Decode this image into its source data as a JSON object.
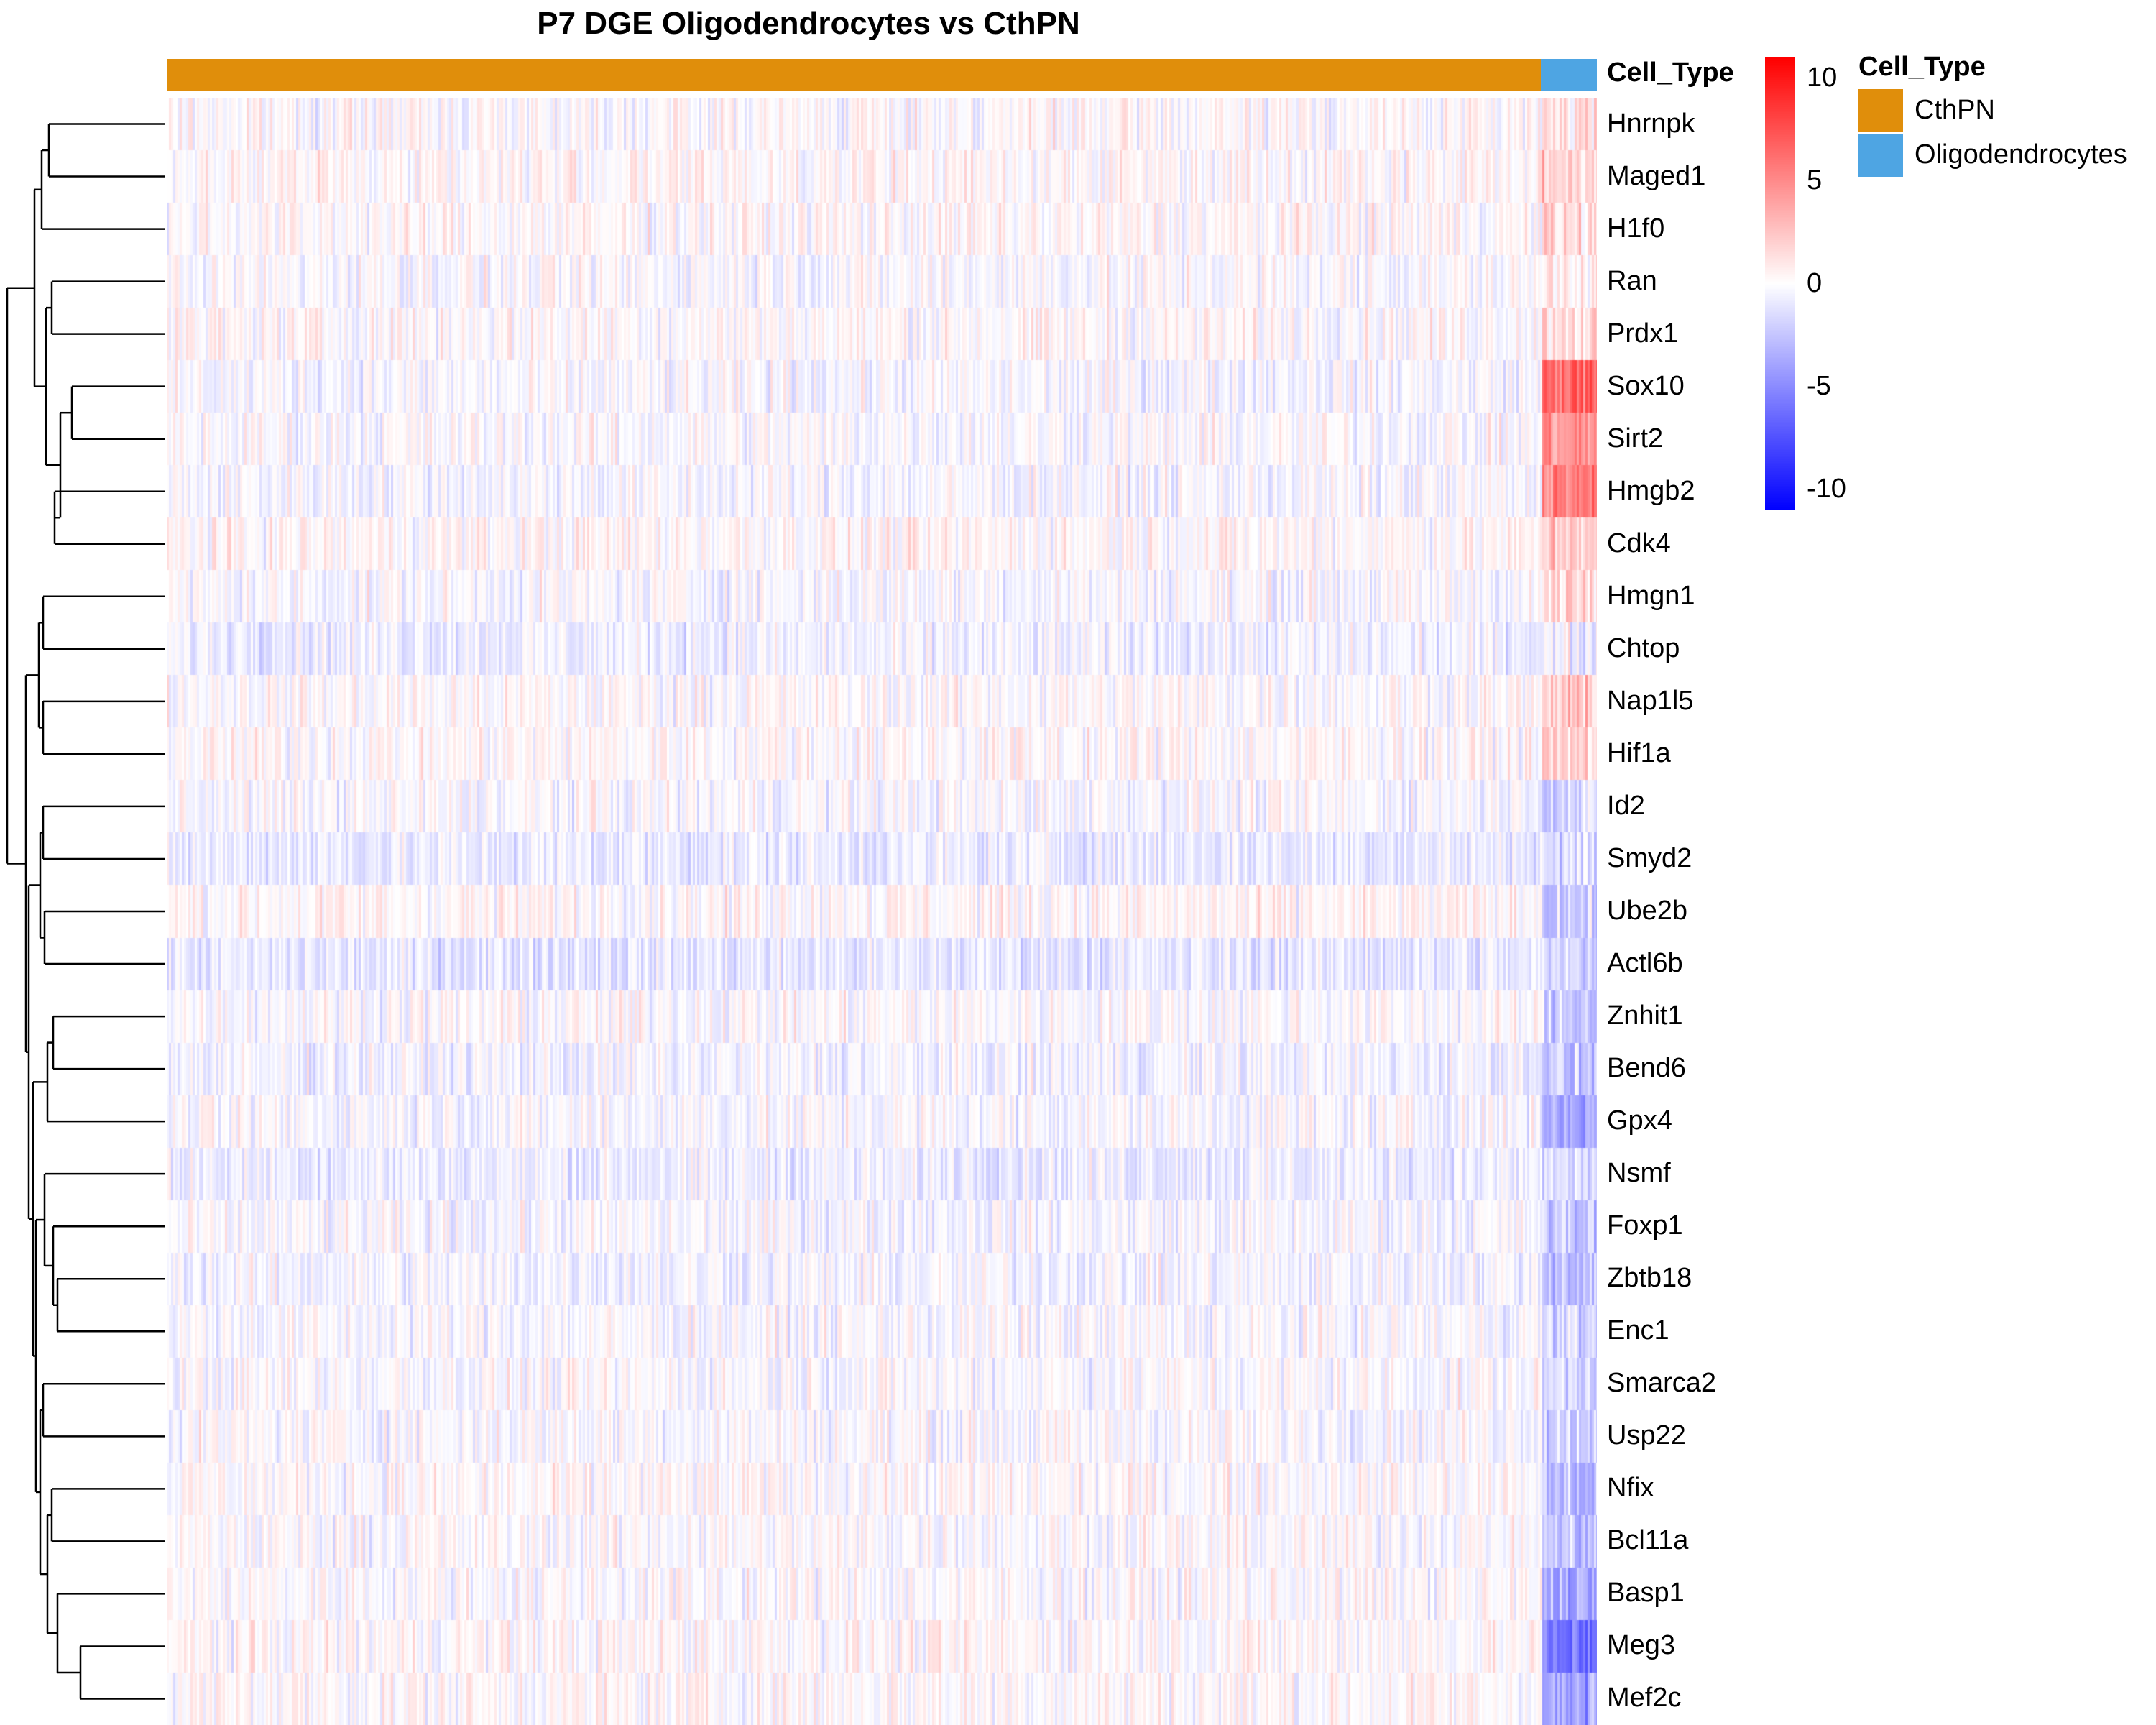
{
  "chart_data": {
    "type": "heatmap",
    "title": "P7 DGE Oligodendrocytes vs CthPN",
    "rows": [
      "Hnrnpk",
      "Maged1",
      "H1f0",
      "Ran",
      "Prdx1",
      "Sox10",
      "Sirt2",
      "Hmgb2",
      "Cdk4",
      "Hmgn1",
      "Chtop",
      "Nap1l5",
      "Hif1a",
      "Id2",
      "Smyd2",
      "Ube2b",
      "Actl6b",
      "Znhit1",
      "Bend6",
      "Gpx4",
      "Nsmf",
      "Foxp1",
      "Zbtb18",
      "Enc1",
      "Smarca2",
      "Usp22",
      "Nfix",
      "Bcl11a",
      "Basp1",
      "Meg3",
      "Mef2c"
    ],
    "row_means": {
      "CthPN": [
        0.1,
        0.3,
        0.2,
        -0.1,
        0.2,
        -0.3,
        -0.1,
        -0.3,
        0.3,
        -0.2,
        -0.6,
        0.1,
        0.2,
        -0.2,
        -0.8,
        0.3,
        -1.0,
        0.0,
        -0.5,
        -0.2,
        -0.7,
        -0.3,
        -0.4,
        -0.2,
        -0.1,
        -0.1,
        0.1,
        0.0,
        0.0,
        0.2,
        0.2
      ],
      "Oligodendrocytes": [
        1.5,
        1.8,
        1.5,
        1.2,
        1.8,
        6.5,
        4.5,
        5.5,
        2.5,
        1.5,
        -0.6,
        2.0,
        1.8,
        -1.8,
        -1.5,
        -2.2,
        -1.8,
        -2.2,
        -2.5,
        -3.5,
        -1.5,
        -2.5,
        -2.5,
        -1.8,
        -1.5,
        -1.8,
        -3.0,
        -2.5,
        -3.5,
        -6.0,
        -4.0
      ]
    },
    "column_groups": [
      {
        "name": "CthPN",
        "color": "#E08E0B",
        "fraction": 0.961
      },
      {
        "name": "Oligodendrocytes",
        "color": "#4EA5E3",
        "fraction": 0.039
      }
    ],
    "annotation_label": "Cell_Type",
    "color_scale": {
      "min": -11,
      "max": 11,
      "low": "#0000FF",
      "mid": "#FFFFFF",
      "high": "#FF0000",
      "ticks": [
        10,
        5,
        0,
        -5,
        -10
      ]
    },
    "legend": {
      "title": "Cell_Type",
      "entries": [
        "CthPN",
        "Oligodendrocytes"
      ]
    },
    "dendrogram": "rows"
  }
}
